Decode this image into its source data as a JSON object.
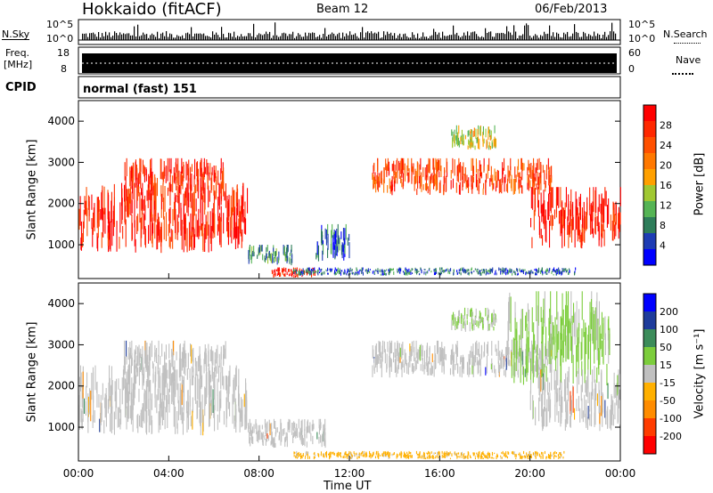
{
  "header": {
    "site": "Hokkaido (fitACF)",
    "beam": "Beam 12",
    "date": "06/Feb/2013"
  },
  "noise_panel": {
    "left_label": "N.Sky",
    "right_label": "N.Search",
    "ticks_left": [
      "10^5",
      "10^0"
    ],
    "ticks_right": [
      "10^5",
      "10^0"
    ]
  },
  "freq_panel": {
    "left_label_1": "Freq.",
    "left_label_2": "[MHz]",
    "right_label": "Nave",
    "ticks_left": [
      "18",
      "8"
    ],
    "ticks_right": [
      "60",
      "0"
    ]
  },
  "cpid": {
    "label": "CPID",
    "mode": "normal (fast) 151"
  },
  "colors": {
    "power_bar": [
      "#0000ff",
      "#1e3cb4",
      "#2e7d5a",
      "#55b455",
      "#a0c832",
      "#ffa000",
      "#ff7800",
      "#ff5000",
      "#ff2800",
      "#ff0000"
    ],
    "velocity_bar": [
      "#ff0000",
      "#ff3c00",
      "#ff8c00",
      "#ffb000",
      "#c0c0c0",
      "#7ccd3c",
      "#3c8c5a",
      "#1e3c9b",
      "#0000ff"
    ]
  },
  "chart_data": [
    {
      "type": "heatmap",
      "title": "Power",
      "xlabel": "Time UT",
      "ylabel": "Slant Range [km]",
      "xticks": [
        "00:00",
        "04:00",
        "08:00",
        "12:00",
        "16:00",
        "20:00",
        "00:00"
      ],
      "yticks": [
        "1000",
        "2000",
        "3000",
        "4000"
      ],
      "ylim": [
        180,
        4500
      ],
      "xlim_hours": [
        0,
        24
      ],
      "colorbar": {
        "label": "Power [dB]",
        "ticks": [
          "4",
          "8",
          "12",
          "16",
          "20",
          "24",
          "28"
        ],
        "range": [
          0,
          30
        ]
      },
      "regions": [
        {
          "t": [
            0,
            7.5
          ],
          "r": [
            800,
            2500
          ],
          "level": 27
        },
        {
          "t": [
            2,
            6.5
          ],
          "r": [
            2000,
            3100
          ],
          "level": 26
        },
        {
          "t": [
            7.5,
            9.5
          ],
          "r": [
            500,
            1000
          ],
          "level": 8
        },
        {
          "t": [
            8.5,
            10.5
          ],
          "r": [
            200,
            450
          ],
          "level": 28
        },
        {
          "t": [
            9.5,
            22
          ],
          "r": [
            250,
            450
          ],
          "level": 6
        },
        {
          "t": [
            10.5,
            12
          ],
          "r": [
            600,
            1500
          ],
          "level": 6
        },
        {
          "t": [
            13,
            21
          ],
          "r": [
            2200,
            3100
          ],
          "level": 24
        },
        {
          "t": [
            16.5,
            18.5
          ],
          "r": [
            3300,
            3900
          ],
          "level": 14
        },
        {
          "t": [
            20,
            24
          ],
          "r": [
            900,
            2400
          ],
          "level": 27
        }
      ]
    },
    {
      "type": "heatmap",
      "title": "Velocity",
      "xlabel": "Time UT",
      "ylabel": "Slant Range [km]",
      "xticks": [
        "00:00",
        "04:00",
        "08:00",
        "12:00",
        "16:00",
        "20:00",
        "00:00"
      ],
      "yticks": [
        "1000",
        "2000",
        "3000",
        "4000"
      ],
      "ylim": [
        180,
        4500
      ],
      "xlim_hours": [
        0,
        24
      ],
      "colorbar": {
        "label": "Velocity [m s⁻¹]",
        "ticks": [
          "200",
          "100",
          "50",
          "15",
          "-15",
          "-50",
          "-100",
          "-200"
        ],
        "range": [
          -250,
          250
        ]
      },
      "regions": [
        {
          "t": [
            0,
            7.5
          ],
          "r": [
            800,
            2500
          ],
          "level": 0
        },
        {
          "t": [
            2,
            6.5
          ],
          "r": [
            2000,
            3100
          ],
          "level": 0
        },
        {
          "t": [
            7.5,
            11
          ],
          "r": [
            500,
            1200
          ],
          "level": 0
        },
        {
          "t": [
            9.5,
            21.5
          ],
          "r": [
            220,
            420
          ],
          "level": -40
        },
        {
          "t": [
            13,
            21
          ],
          "r": [
            2200,
            3100
          ],
          "level": 0
        },
        {
          "t": [
            16.5,
            18.5
          ],
          "r": [
            3300,
            3900
          ],
          "level": 30
        },
        {
          "t": [
            19,
            23.5
          ],
          "r": [
            2000,
            4300
          ],
          "level": 35
        },
        {
          "t": [
            20,
            24
          ],
          "r": [
            900,
            2400
          ],
          "level": 0
        }
      ]
    }
  ]
}
